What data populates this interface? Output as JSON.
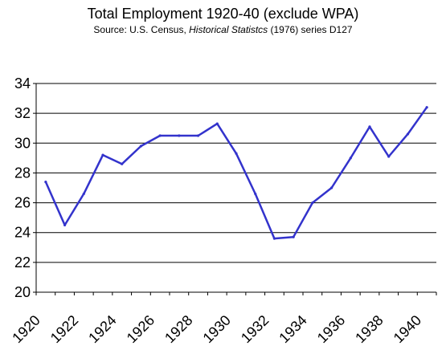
{
  "chart_data": {
    "type": "line",
    "title": "Total Employment 1920-40 (exclude WPA)",
    "subtitle": {
      "prefix": "Source: U.S. Census, ",
      "italic": "Historical Statistcs",
      "suffix": " (1976) series D127"
    },
    "xlabel": "",
    "ylabel": "",
    "xlim": [
      1920,
      1941
    ],
    "ylim": [
      20,
      34
    ],
    "x_ticks": [
      1920,
      1922,
      1924,
      1926,
      1928,
      1930,
      1932,
      1934,
      1936,
      1938,
      1940
    ],
    "x_tick_labels": [
      "1920",
      "1922",
      "1924",
      "1926",
      "1928",
      "1930",
      "1932",
      "1934",
      "1936",
      "1938",
      "1940"
    ],
    "y_ticks": [
      20,
      22,
      24,
      26,
      28,
      30,
      32,
      34
    ],
    "y_tick_labels": [
      "20",
      "22",
      "24",
      "26",
      "28",
      "30",
      "32",
      "34"
    ],
    "grid": "horizontal",
    "legend": "none",
    "series": [
      {
        "x": [
          1920.5,
          1921.5,
          1922.5,
          1923.5,
          1924.5,
          1925.5,
          1926.5,
          1927.5,
          1928.5,
          1929.5,
          1930.5,
          1931.5,
          1932.5,
          1933.5,
          1934.5,
          1935.5,
          1936.5,
          1937.5,
          1938.5,
          1939.5,
          1940.5
        ],
        "y": [
          27.4,
          24.5,
          26.6,
          29.2,
          28.6,
          29.8,
          30.5,
          30.5,
          30.5,
          31.3,
          29.3,
          26.6,
          23.6,
          23.7,
          26.0,
          27.0,
          29.0,
          31.1,
          29.1,
          30.6,
          32.4
        ],
        "color": "#3333cc"
      }
    ]
  }
}
